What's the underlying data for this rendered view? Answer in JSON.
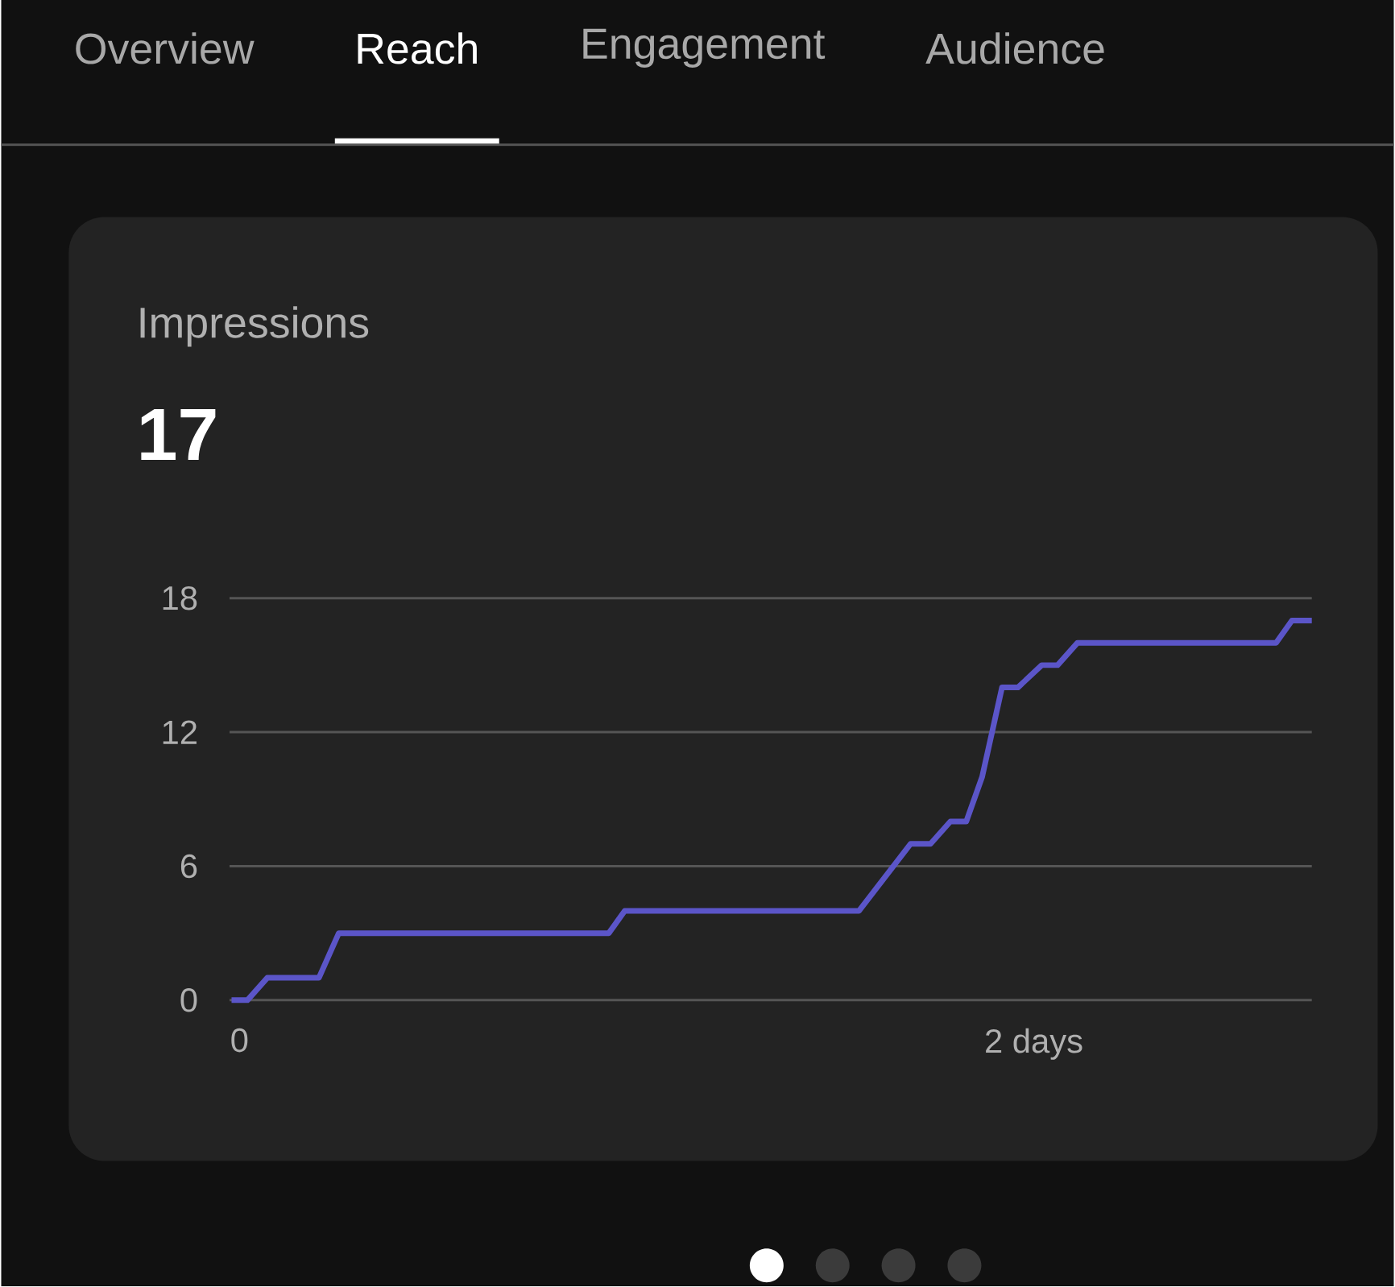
{
  "chart_data": {
    "type": "line",
    "title": "Impressions",
    "subtitle": "17",
    "annotations": [
      "Overview",
      "Reach",
      "Engagement",
      "Audience"
    ],
    "x": [
      -0.02,
      0.02,
      0.07,
      0.2,
      0.25,
      0.93,
      0.97,
      1.56,
      1.69,
      1.74,
      1.79,
      1.83,
      1.87,
      1.92,
      1.96,
      2.02,
      2.06,
      2.11,
      2.61,
      2.65,
      2.7
    ],
    "values": [
      0,
      0,
      1,
      1,
      3,
      3,
      4,
      4,
      7,
      7,
      8,
      8,
      10,
      14,
      14,
      15,
      15,
      16,
      16,
      17,
      17
    ],
    "color": "#5b55c8",
    "xlim": [
      -0.025,
      2.7
    ],
    "ylim": [
      0,
      18
    ],
    "xticks": [
      {
        "value": 0,
        "label": "0"
      },
      {
        "value": 2,
        "label": "2 days"
      }
    ],
    "yticks": [
      0,
      6,
      12,
      18
    ],
    "grid": "y"
  }
}
